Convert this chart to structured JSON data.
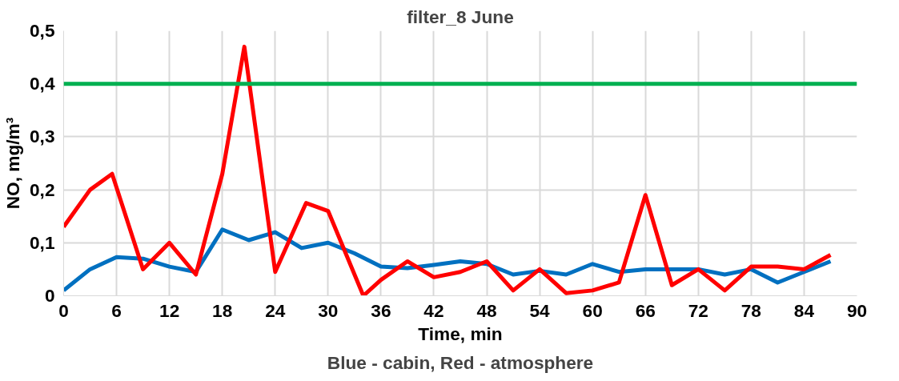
{
  "chart_data": {
    "type": "line",
    "title": "filter_8 June",
    "xlabel": "Time, min",
    "ylabel": "NO, mg/m³",
    "annotations": [
      "Blue - cabin, Red - atmosphere"
    ],
    "xlim": [
      0,
      90
    ],
    "xticks": [
      0,
      6,
      12,
      18,
      24,
      30,
      36,
      42,
      48,
      54,
      60,
      66,
      72,
      78,
      84,
      90
    ],
    "ylim": [
      0,
      0.5
    ],
    "yticks": [
      0,
      {
        "value": 0.1,
        "label": "0,1"
      },
      {
        "value": 0.2,
        "label": "0,2"
      },
      {
        "value": 0.3,
        "label": "0,3"
      },
      {
        "value": 0.4,
        "label": "0,4"
      },
      {
        "value": 0.5,
        "label": "0,5"
      }
    ],
    "grid": true,
    "marker": "none",
    "line_style": "solid",
    "ref_lines": [
      {
        "axis": "y",
        "value": 0.4,
        "color": "#00b050"
      }
    ],
    "series": [
      {
        "color": "#0070c0",
        "x": [
          0,
          3,
          6,
          9,
          12,
          15,
          18,
          21,
          24,
          27,
          30,
          33,
          36,
          39,
          42,
          45,
          48,
          51,
          54,
          57,
          60,
          63,
          66,
          69,
          72,
          75,
          78,
          81,
          84,
          87
        ],
        "values": [
          0.01,
          0.05,
          0.073,
          0.07,
          0.055,
          0.045,
          0.125,
          0.105,
          0.12,
          0.09,
          0.1,
          0.08,
          0.055,
          0.052,
          0.058,
          0.065,
          0.06,
          0.04,
          0.047,
          0.04,
          0.06,
          0.045,
          0.05,
          0.05,
          0.05,
          0.04,
          0.05,
          0.025,
          0.045,
          0.065
        ]
      },
      {
        "color": "#ff0000",
        "x": [
          0,
          3,
          5.5,
          9,
          12,
          15,
          18,
          20.5,
          24,
          27.5,
          30,
          34,
          36,
          39,
          42,
          45,
          48,
          51,
          54,
          57,
          60,
          63,
          66,
          69,
          72,
          75,
          78,
          81,
          84,
          87
        ],
        "values": [
          0.13,
          0.2,
          0.23,
          0.05,
          0.1,
          0.04,
          0.23,
          0.47,
          0.045,
          0.175,
          0.16,
          0.0,
          0.03,
          0.065,
          0.035,
          0.045,
          0.065,
          0.01,
          0.05,
          0.005,
          0.01,
          0.025,
          0.19,
          0.02,
          0.05,
          0.01,
          0.055,
          0.055,
          0.05,
          0.077
        ]
      }
    ]
  }
}
